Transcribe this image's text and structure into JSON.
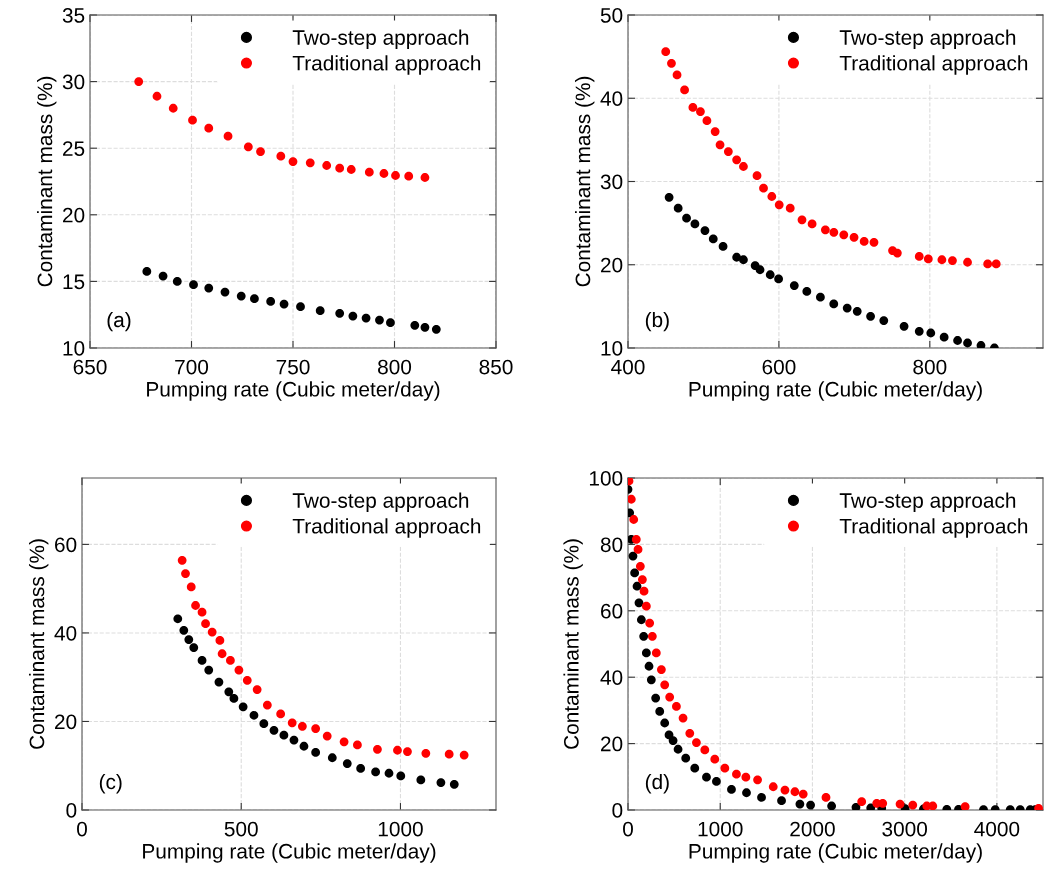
{
  "chart_data": [
    {
      "type": "scatter",
      "xlabel": "Pumping rate (Cubic meter/day)",
      "ylabel": "Contaminant mass (%)",
      "annotations": [
        "(a)"
      ],
      "xlim": [
        650,
        850
      ],
      "xticks": [
        650,
        700,
        750,
        800,
        850
      ],
      "ylim": [
        10,
        35
      ],
      "yticks": [
        10,
        15,
        20,
        25,
        30,
        35
      ],
      "grid": true,
      "legend": "top right",
      "marker": "circle",
      "series": [
        {
          "name": "Two-step approach",
          "color": "#000000",
          "x": [
            678,
            686,
            693,
            701,
            708.5,
            716.5,
            724.5,
            731,
            739,
            745.6,
            753.7,
            763.4,
            773,
            779.5,
            786,
            792.6,
            798,
            810,
            815,
            820.6
          ],
          "values": [
            15.75,
            15.4,
            15.0,
            14.75,
            14.5,
            14.2,
            13.9,
            13.7,
            13.5,
            13.3,
            13.1,
            12.8,
            12.6,
            12.4,
            12.25,
            12.1,
            11.9,
            11.7,
            11.55,
            11.4
          ]
        },
        {
          "name": "Traditional approach",
          "color": "#ff0000",
          "x": [
            674,
            683,
            691,
            700.5,
            708.5,
            718,
            728,
            734,
            744,
            750,
            758.5,
            766.6,
            773,
            778.7,
            787.6,
            794.8,
            800.5,
            807,
            815
          ],
          "values": [
            30.0,
            28.9,
            28.0,
            27.1,
            26.5,
            25.9,
            25.1,
            24.75,
            24.4,
            24.0,
            23.9,
            23.7,
            23.5,
            23.4,
            23.2,
            23.1,
            22.95,
            22.9,
            22.8
          ]
        }
      ]
    },
    {
      "type": "scatter",
      "xlabel": "Pumping rate (Cubic meter/day)",
      "ylabel": "Contaminant mass (%)",
      "annotations": [
        "(b)"
      ],
      "xlim": [
        400,
        950
      ],
      "xticks": [
        400,
        600,
        800
      ],
      "ylim": [
        10,
        50
      ],
      "yticks": [
        10,
        20,
        30,
        40,
        50
      ],
      "grid": true,
      "legend": "top right",
      "marker": "circle",
      "series": [
        {
          "name": "Two-step approach",
          "color": "#000000",
          "x": [
            454.5,
            466.5,
            477.6,
            488.7,
            502,
            513,
            526,
            544,
            553,
            568.5,
            575,
            588.5,
            599.6,
            620.4,
            637,
            655,
            672.7,
            690.5,
            703.8,
            721.5,
            739,
            765.9,
            786,
            801.3,
            819,
            836.8,
            850,
            867.8,
            885.6
          ],
          "values": [
            28.1,
            26.8,
            25.6,
            24.9,
            24.1,
            23.1,
            22.2,
            20.9,
            20.6,
            19.9,
            19.4,
            18.8,
            18.3,
            17.5,
            16.8,
            16.1,
            15.3,
            14.8,
            14.4,
            13.8,
            13.3,
            12.6,
            12.0,
            11.8,
            11.3,
            10.9,
            10.6,
            10.3,
            10.0
          ]
        },
        {
          "name": "Traditional approach",
          "color": "#ff0000",
          "x": [
            450,
            457.6,
            465,
            475,
            486,
            496,
            504.6,
            515.5,
            522,
            533,
            544,
            553,
            571,
            579.6,
            590.6,
            600.4,
            615,
            630.6,
            644,
            661.6,
            672.8,
            686,
            699.6,
            713,
            726,
            750.6,
            757,
            786,
            798,
            816,
            830,
            850,
            876.7,
            888
          ],
          "values": [
            45.6,
            44.2,
            42.8,
            41.0,
            38.9,
            38.4,
            37.3,
            36.0,
            34.4,
            33.6,
            32.6,
            31.8,
            30.7,
            29.2,
            28.2,
            27.2,
            26.8,
            25.4,
            24.9,
            24.2,
            23.9,
            23.6,
            23.3,
            22.8,
            22.7,
            21.7,
            21.4,
            21.0,
            20.7,
            20.6,
            20.5,
            20.3,
            20.1,
            20.1
          ]
        }
      ]
    },
    {
      "type": "scatter",
      "xlabel": "Pumping rate (Cubic meter/day)",
      "ylabel": "Contaminant mass (%)",
      "annotations": [
        "(c)"
      ],
      "xlim": [
        0,
        1300
      ],
      "xticks": [
        0,
        500,
        1000
      ],
      "ylim": [
        0,
        75
      ],
      "yticks": [
        0,
        20,
        40,
        60
      ],
      "grid": true,
      "legend": "top right",
      "marker": "circle",
      "series": [
        {
          "name": "Two-step approach",
          "color": "#000000",
          "x": [
            300.8,
            319.7,
            335.4,
            351,
            377,
            398,
            430,
            461,
            477,
            506,
            540,
            571,
            602.8,
            634,
            665.6,
            697,
            733.7,
            786,
            833,
            875,
            922,
            964,
            1001,
            1064,
            1127,
            1169
          ],
          "values": [
            43.2,
            40.6,
            38.5,
            36.7,
            33.8,
            31.6,
            28.9,
            26.7,
            25.2,
            23.3,
            21.4,
            19.5,
            18.0,
            16.9,
            15.8,
            14.4,
            13.0,
            11.8,
            10.5,
            9.4,
            8.6,
            8.3,
            7.7,
            6.8,
            6.2,
            5.8
          ]
        },
        {
          "name": "Traditional approach",
          "color": "#ff0000",
          "x": [
            314.5,
            325,
            343,
            356.6,
            377,
            388,
            408.8,
            433,
            440,
            466,
            492.7,
            519,
            550,
            582,
            623.8,
            660,
            692,
            733.7,
            770,
            823,
            864.8,
            927.7,
            990.6,
            1022,
            1079.7,
            1153,
            1200
          ],
          "values": [
            56.4,
            53.4,
            50.4,
            46.2,
            44.7,
            42.1,
            40.2,
            38.3,
            35.3,
            33.8,
            31.6,
            29.3,
            27.2,
            23.7,
            21.7,
            19.7,
            18.9,
            18.4,
            16.7,
            15.4,
            14.7,
            13.7,
            13.5,
            13.2,
            12.8,
            12.6,
            12.4
          ]
        }
      ]
    },
    {
      "type": "scatter",
      "xlabel": "Pumping rate (Cubic meter/day)",
      "ylabel": "Contaminant mass (%)",
      "annotations": [
        "(d)"
      ],
      "xlim": [
        0,
        4500
      ],
      "xticks": [
        0,
        1000,
        2000,
        3000,
        4000
      ],
      "ylim": [
        0,
        100
      ],
      "yticks": [
        0,
        20,
        40,
        60,
        80,
        100
      ],
      "grid": true,
      "legend": "top right",
      "marker": "circle",
      "series": [
        {
          "name": "Two-step approach",
          "color": "#000000",
          "x": [
            0,
            18,
            36,
            54,
            72,
            98,
            119,
            145,
            170,
            199,
            228,
            253,
            300,
            344,
            398,
            445,
            489,
            543,
            626,
            724,
            851,
            959,
            1122,
            1285,
            1448,
            1665,
            1864,
            1980,
            2208,
            2472,
            2632,
            2751,
            3005,
            3204,
            3312,
            3457,
            3584,
            3855,
            3982,
            4145,
            4253,
            4362,
            4416
          ],
          "values": [
            96.6,
            89.5,
            81.5,
            76.5,
            71.4,
            67.4,
            62.4,
            57.3,
            52.3,
            47.3,
            43.3,
            39.2,
            33.7,
            29.7,
            26.2,
            22.6,
            20.9,
            18.3,
            15.6,
            12.6,
            9.9,
            8.6,
            6.2,
            5.2,
            3.8,
            2.8,
            1.8,
            1.5,
            1.2,
            0.8,
            0.6,
            0.5,
            0.4,
            0.3,
            null,
            0.2,
            0.2,
            0.1,
            0.1,
            0.1,
            0.1,
            0.1,
            0.1
          ]
        },
        {
          "name": "Traditional approach",
          "color": "#ff0000",
          "x": [
            11,
            36,
            62,
            90,
            109,
            134,
            156,
            174,
            199,
            235,
            264,
            307,
            362,
            398,
            452,
            525,
            597,
            670,
            742,
            833,
            941,
            1050,
            1176,
            1278,
            1405,
            1575,
            1702,
            1810,
            1900,
            2147,
            2534,
            2697,
            2762,
            2950,
            3088,
            3240,
            3305,
            3656,
            4452
          ],
          "values": [
            99.1,
            93.6,
            87.5,
            81.5,
            78.5,
            73.4,
            69.4,
            65.9,
            61.4,
            56.3,
            52.3,
            47.3,
            42.3,
            37.7,
            34.0,
            31.2,
            27.7,
            23.1,
            20.3,
            18.1,
            15.3,
            12.6,
            10.8,
            9.9,
            9.1,
            7.0,
            6.0,
            5.5,
            4.8,
            3.8,
            2.5,
            2.0,
            2.0,
            1.8,
            1.5,
            1.2,
            1.2,
            1.0,
            0.5
          ]
        }
      ]
    }
  ]
}
